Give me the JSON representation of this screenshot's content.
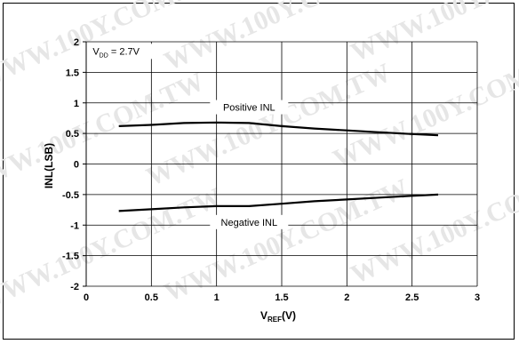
{
  "watermark": {
    "texts": [
      "WWW.100Y.COM.TW",
      "WWW.100Y.COM.TW",
      "WWW.100Y.COM.TW",
      "WWW.100Y.COM.TW",
      "WWW.100Y.COM.TW",
      "WWW.100Y.COM.TW",
      "WWW.100Y.COM.TW",
      "WWW.100Y.COM.TW",
      "WWW.100Y.COM.TW"
    ],
    "color": "#e6e6e6"
  },
  "chart_data": {
    "type": "line",
    "title": "",
    "xlabel": {
      "main": "V",
      "sub": "REF",
      "suffix": "(V)"
    },
    "ylabel": "INL(LSB)",
    "xlim": [
      0,
      3
    ],
    "ylim": [
      -2,
      2
    ],
    "xticks": [
      0,
      0.5,
      1,
      1.5,
      2,
      2.5,
      3
    ],
    "xtick_labels": [
      "0",
      "0.5",
      "1",
      "1.5",
      "2",
      "2.5",
      "3"
    ],
    "yticks": [
      -2,
      -1.5,
      -1,
      -0.5,
      0,
      0.5,
      1,
      1.5,
      2
    ],
    "ytick_labels": [
      "-2",
      "-1.5",
      "-1",
      "-0.5",
      "0",
      "0.5",
      "1",
      "1.5",
      "2"
    ],
    "grid": true,
    "annotation": {
      "main": "V",
      "sub": "DD",
      "suffix": " = 2.7V",
      "x": 0.05,
      "y": 1.85
    },
    "series": [
      {
        "name": "Positive INL",
        "color": "#000000",
        "x": [
          0.25,
          0.5,
          0.75,
          1.0,
          1.25,
          1.5,
          1.75,
          2.0,
          2.25,
          2.5,
          2.7
        ],
        "y": [
          0.62,
          0.64,
          0.67,
          0.68,
          0.67,
          0.62,
          0.58,
          0.55,
          0.52,
          0.49,
          0.47
        ],
        "label_at": [
          1.25,
          0.93
        ]
      },
      {
        "name": "Negative INL",
        "color": "#000000",
        "x": [
          0.25,
          0.5,
          0.75,
          1.0,
          1.25,
          1.5,
          1.75,
          2.0,
          2.25,
          2.5,
          2.7
        ],
        "y": [
          -0.77,
          -0.74,
          -0.71,
          -0.69,
          -0.69,
          -0.65,
          -0.61,
          -0.58,
          -0.55,
          -0.52,
          -0.5
        ],
        "label_at": [
          1.25,
          -0.95
        ]
      }
    ]
  }
}
